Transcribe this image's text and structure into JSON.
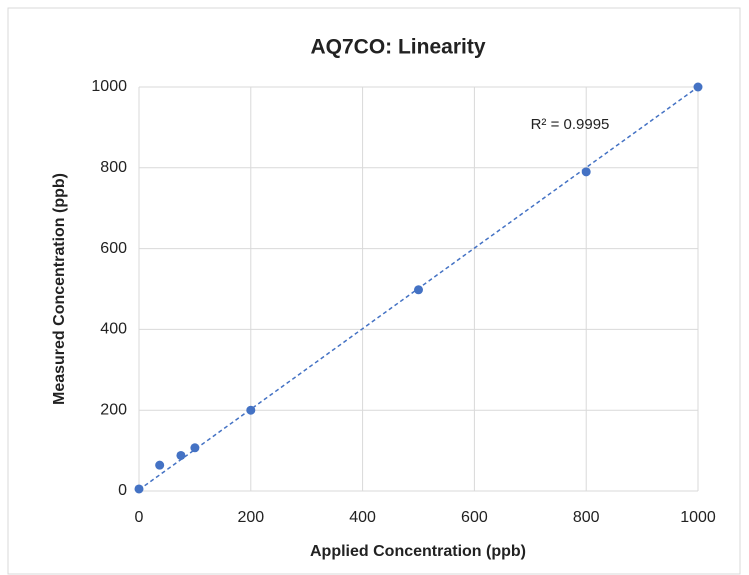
{
  "chart_data": {
    "type": "scatter",
    "title": "AQ7CO: Linearity",
    "xlabel": "Applied Concentration (ppb)",
    "ylabel": "Measured Concentration (ppb)",
    "x": [
      0,
      37,
      75,
      100,
      200,
      500,
      800,
      1000
    ],
    "values": [
      5,
      64,
      88,
      107,
      200,
      498,
      790,
      1000
    ],
    "color": "#4472c4",
    "trendline": {
      "x": [
        0,
        1000
      ],
      "values": [
        3,
        1000
      ],
      "color": "#4472c4",
      "label": "R² = 0.9995"
    },
    "xlim": [
      0,
      1000
    ],
    "xticks": [
      0,
      200,
      400,
      600,
      800,
      1000
    ],
    "ylim": [
      0,
      1000
    ],
    "yticks": [
      0,
      200,
      400,
      600,
      800,
      1000
    ],
    "grid": true
  }
}
